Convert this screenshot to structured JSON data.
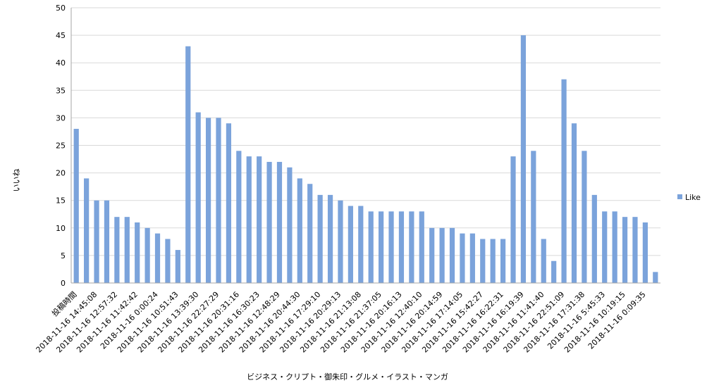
{
  "chart_data": {
    "type": "bar",
    "title": "",
    "xlabel": "ビジネス・クリプト・御朱印・グルメ・イラスト・マンガ",
    "ylabel": "いいね",
    "ylim": [
      0,
      50
    ],
    "yticks": [
      0,
      5,
      10,
      15,
      20,
      25,
      30,
      35,
      40,
      45,
      50
    ],
    "grid": true,
    "legend_position": "right",
    "series": [
      {
        "name": "Like",
        "color": "#7ba3db",
        "values": [
          28,
          19,
          15,
          15,
          12,
          12,
          11,
          10,
          9,
          8,
          6,
          43,
          31,
          30,
          30,
          29,
          24,
          23,
          23,
          22,
          22,
          21,
          19,
          18,
          16,
          16,
          15,
          14,
          14,
          13,
          13,
          13,
          13,
          13,
          13,
          10,
          10,
          10,
          9,
          9,
          8,
          8,
          8,
          23,
          45,
          24,
          8,
          4,
          37,
          29,
          24,
          16,
          13,
          13,
          12,
          12,
          11,
          2
        ]
      }
    ],
    "x_tick_labels": [
      "投稿時間",
      "2018-11-16 14:45:08",
      "2018-11-16 12:57:32",
      "2018-11-16 11:42:42",
      "2018-11-16 0:00:24",
      "2018-11-16 10:51:43",
      "2018-11-16 13:39:30",
      "2018-11-16 22:27:29",
      "2018-11-16 20:31:16",
      "2018-11-16 16:30:23",
      "2018-11-16 12:48:29",
      "2018-11-16 20:44:30",
      "2018-11-16 17:29:10",
      "2018-11-16 20:29:13",
      "2018-11-16 21:13:08",
      "2018-11-16 21:37:05",
      "2018-11-16 20:16:13",
      "2018-11-16 12:40:10",
      "2018-11-16 20:14:59",
      "2018-11-16 17:14:05",
      "2018-11-16 15:42:27",
      "2018-11-16 16:22:31",
      "2018-11-16 16:19:39",
      "2018-11-16 11:41:40",
      "2018-11-16 22:51:09",
      "2018-11-16 17:31:38",
      "2018-11-16 5:45:33",
      "2018-11-16 10:19:15",
      "2018-11-16 0:09:35"
    ]
  }
}
